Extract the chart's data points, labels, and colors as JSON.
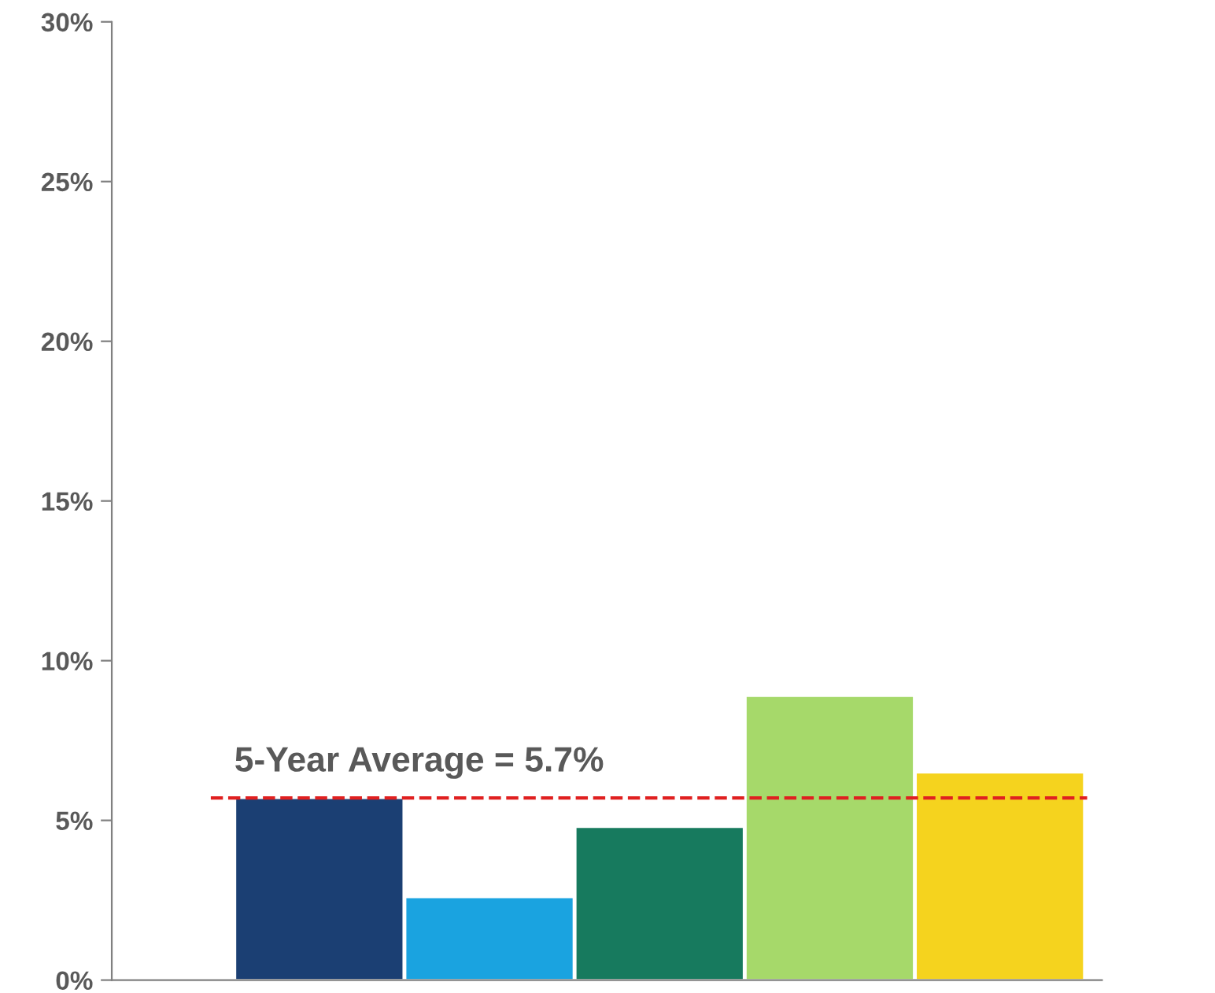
{
  "chart_data": {
    "type": "bar",
    "categories": [
      null,
      null,
      null,
      null,
      null
    ],
    "values": [
      5.7,
      2.6,
      4.8,
      8.9,
      6.5
    ],
    "colors": [
      "#1b3f73",
      "#1aa3e0",
      "#177a5e",
      "#a6d96a",
      "#f5d31e"
    ],
    "ylim": [
      0,
      30
    ],
    "yticks": [
      {
        "value": 0,
        "label": "0%"
      },
      {
        "value": 5,
        "label": "5%"
      },
      {
        "value": 10,
        "label": "10%"
      },
      {
        "value": 15,
        "label": "15%"
      },
      {
        "value": 20,
        "label": "20%"
      },
      {
        "value": 25,
        "label": "25%"
      },
      {
        "value": 30,
        "label": "30%"
      }
    ],
    "ref_lines": [
      {
        "axis": "y",
        "value": 5.7,
        "label": "5-Year Average = 5.7%",
        "color": "#e02020",
        "line_style": "dashed"
      }
    ],
    "grid": false
  }
}
